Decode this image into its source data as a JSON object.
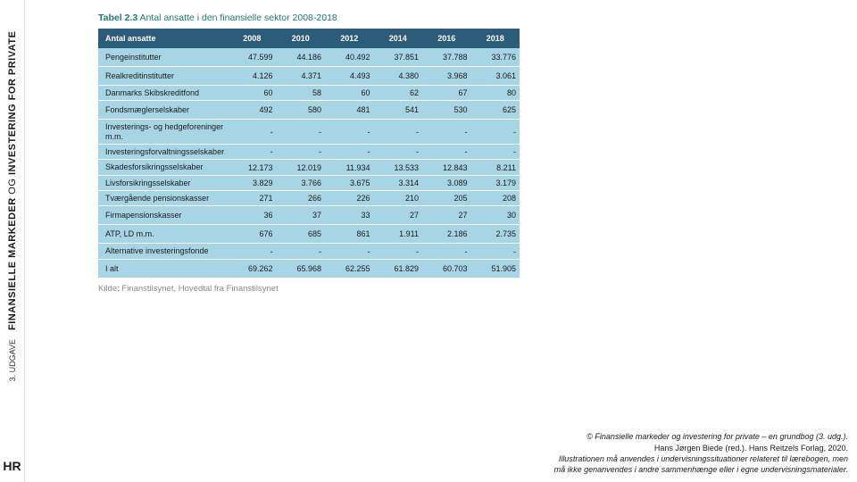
{
  "sidebar": {
    "title_part1": "FINANSIELLE MARKEDER",
    "title_og": "OG",
    "title_part2": "INVESTERING FOR PRIVATE",
    "edition": "3. UDGAVE",
    "logo": "HR"
  },
  "table": {
    "caption_prefix": "Tabel 2.3",
    "caption": "Antal ansatte i den finansielle sektor 2008-2018",
    "header_label": "Antal ansatte",
    "years": [
      "2008",
      "2010",
      "2012",
      "2014",
      "2016",
      "2018"
    ],
    "rows": [
      {
        "label": "Pengeinstitutter",
        "vals": [
          "47.599",
          "44.186",
          "40.492",
          "37.851",
          "37.788",
          "33.776"
        ]
      },
      {
        "label": "Realkreditinstitutter",
        "vals": [
          "4.126",
          "4.371",
          "4.493",
          "4.380",
          "3.968",
          "3.061"
        ]
      },
      {
        "label": "Danmarks Skibskreditfond",
        "vals": [
          "60",
          "58",
          "60",
          "62",
          "67",
          "80"
        ]
      },
      {
        "label": "Fondsmæglerselskaber",
        "vals": [
          "492",
          "580",
          "481",
          "541",
          "530",
          "625"
        ]
      },
      {
        "label": "Investerings- og hedgeforeninger m.m.",
        "vals": [
          "-",
          "-",
          "-",
          "-",
          "-",
          "-"
        ]
      },
      {
        "label": "Investeringsforvaltningsselskaber",
        "vals": [
          "-",
          "-",
          "-",
          "-",
          "-",
          "-"
        ]
      },
      {
        "label": "Skadesforsikringsselskaber",
        "vals": [
          "12.173",
          "12.019",
          "11.934",
          "13.533",
          "12.843",
          "8.211"
        ]
      },
      {
        "label": "Livsforsikringsselskaber",
        "vals": [
          "3.829",
          "3.766",
          "3.675",
          "3.314",
          "3.089",
          "3.179"
        ]
      },
      {
        "label": "Tværgående pensionskasser",
        "vals": [
          "271",
          "266",
          "226",
          "210",
          "205",
          "208"
        ]
      },
      {
        "label": "Firmapensionskasser",
        "vals": [
          "36",
          "37",
          "33",
          "27",
          "27",
          "30"
        ]
      },
      {
        "label": "ATP, LD m.m.",
        "vals": [
          "676",
          "685",
          "861",
          "1.911",
          "2.186",
          "2.735"
        ]
      },
      {
        "label": "Alternative investeringsfonde",
        "vals": [
          "-",
          "-",
          "-",
          "-",
          "-",
          "-"
        ]
      }
    ],
    "total_label": "I alt",
    "totals": [
      "69.262",
      "65.968",
      "62.255",
      "61.829",
      "60.703",
      "51.905"
    ],
    "source": "Kilde: Finanstilsynet, Hovedtal fra Finanstilsynet"
  },
  "footer": {
    "line1": "© Finansielle markeder og investering for private – en grundbog (3. udg.).",
    "line2": "Hans Jørgen Biede (red.). Hans Reitzels Forlag, 2020.",
    "line3": "Illustrationen må anvendes i undervisningssituationer relateret til lærebogen, men",
    "line4": "må ikke genanvendes i andre sammenhænge eller i egne undervisningsmaterialer."
  },
  "styling": {
    "header_bg": "#2b5c7a",
    "row_bg": "#a8d5e5",
    "title_color": "#1a7a7a",
    "text_color": "#1a1a1a",
    "source_color": "#8a8a8a",
    "font_size_table": 9,
    "font_size_title": 10.5
  }
}
